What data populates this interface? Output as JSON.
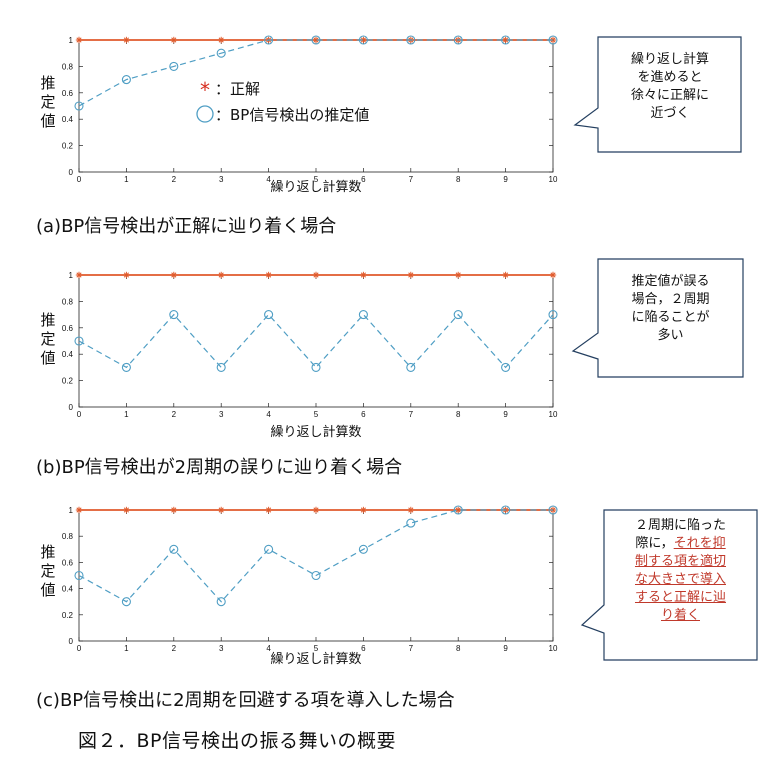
{
  "chart_data": [
    {
      "type": "line",
      "x": [
        0,
        1,
        2,
        3,
        4,
        5,
        6,
        7,
        8,
        9,
        10
      ],
      "series": [
        {
          "name": "正解",
          "values": [
            1,
            1,
            1,
            1,
            1,
            1,
            1,
            1,
            1,
            1,
            1
          ],
          "color": "#e05a2b",
          "marker": "asterisk"
        },
        {
          "name": "BP信号検出の推定値",
          "values": [
            0.5,
            0.7,
            0.8,
            0.9,
            1,
            1,
            1,
            1,
            1,
            1,
            1
          ],
          "color": "#4f9ec4",
          "marker": "circle"
        }
      ],
      "xlabel": "繰り返し計算数",
      "ylabel": "推定値",
      "xlim": [
        0,
        10
      ],
      "ylim": [
        0,
        1
      ],
      "xticks": [
        "0",
        "1",
        "2",
        "3",
        "4",
        "5",
        "6",
        "7",
        "8",
        "9",
        "10"
      ],
      "yticks": [
        "0",
        "0.2",
        "0.4",
        "0.6",
        "0.8",
        "1"
      ]
    },
    {
      "type": "line",
      "x": [
        0,
        1,
        2,
        3,
        4,
        5,
        6,
        7,
        8,
        9,
        10
      ],
      "series": [
        {
          "values": [
            1,
            1,
            1,
            1,
            1,
            1,
            1,
            1,
            1,
            1,
            1
          ],
          "color": "#e05a2b",
          "marker": "asterisk"
        },
        {
          "values": [
            0.5,
            0.3,
            0.7,
            0.3,
            0.7,
            0.3,
            0.7,
            0.3,
            0.7,
            0.3,
            0.7
          ],
          "color": "#4f9ec4",
          "marker": "circle"
        }
      ],
      "xlabel": "繰り返し計算数",
      "ylabel": "推定値",
      "xlim": [
        0,
        10
      ],
      "ylim": [
        0,
        1
      ],
      "xticks": [
        "0",
        "1",
        "2",
        "3",
        "4",
        "5",
        "6",
        "7",
        "8",
        "9",
        "10"
      ],
      "yticks": [
        "0",
        "0.2",
        "0.4",
        "0.6",
        "0.8",
        "1"
      ]
    },
    {
      "type": "line",
      "x": [
        0,
        1,
        2,
        3,
        4,
        5,
        6,
        7,
        8,
        9,
        10
      ],
      "series": [
        {
          "values": [
            1,
            1,
            1,
            1,
            1,
            1,
            1,
            1,
            1,
            1,
            1
          ],
          "color": "#e05a2b",
          "marker": "asterisk"
        },
        {
          "values": [
            0.5,
            0.3,
            0.7,
            0.3,
            0.7,
            0.5,
            0.7,
            0.9,
            1,
            1,
            1
          ],
          "color": "#4f9ec4",
          "marker": "circle"
        }
      ],
      "xlabel": "繰り返し計算数",
      "ylabel": "推定値",
      "xlim": [
        0,
        10
      ],
      "ylim": [
        0,
        1
      ],
      "xticks": [
        "0",
        "1",
        "2",
        "3",
        "4",
        "5",
        "6",
        "7",
        "8",
        "9",
        "10"
      ],
      "yticks": [
        "0",
        "0.2",
        "0.4",
        "0.6",
        "0.8",
        "1"
      ]
    }
  ],
  "legend": {
    "items": [
      {
        "symbol": "*",
        "label": "：正解"
      },
      {
        "symbol": "○",
        "label": "：BP信号検出の推定値"
      }
    ]
  },
  "ylabel_chars": [
    "推",
    "定",
    "値"
  ],
  "captions": [
    "(a)BP信号検出が正解に辿り着く場合",
    "(b)BP信号検出が2周期の誤りに辿り着く場合",
    "(c)BP信号検出に2周期を回避する項を導入した場合"
  ],
  "figure_caption": "図２．BP信号検出の振る舞いの概要",
  "callouts": [
    {
      "lines": [
        "繰り返し計算",
        "を進めると",
        "徐々に正解に",
        "近づく"
      ]
    },
    {
      "lines": [
        "推定値が誤る",
        "場合，２周期",
        "に陥ることが",
        "多い"
      ]
    },
    {
      "line1": "２周期に陥った",
      "line2a": "際に，",
      "line2b": "それを抑",
      "line3": "制する項を適切",
      "line4": "な大きさで導入",
      "line5": "すると正解に辿",
      "line6": "り着く"
    }
  ],
  "colors": {
    "truth": "#e05a2b",
    "estimate": "#4f9ec4",
    "highlight": "#c0392b"
  }
}
